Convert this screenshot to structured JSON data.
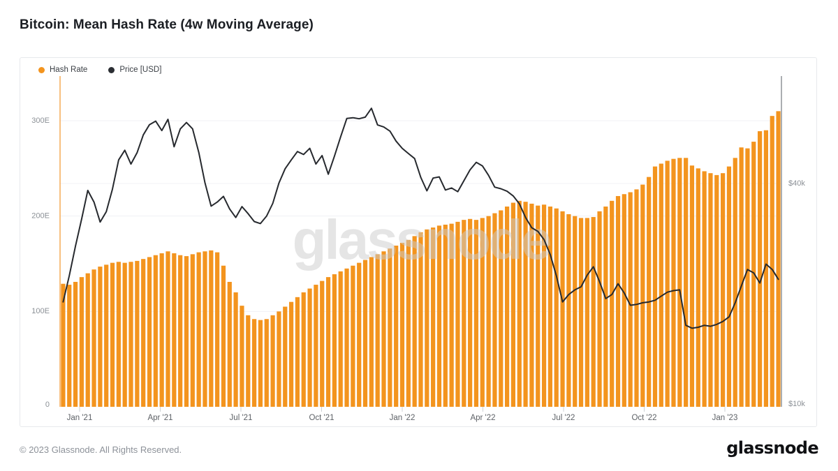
{
  "header": {
    "title": "Bitcoin: Mean Hash Rate (4w Moving Average)"
  },
  "legend": [
    {
      "label": "Hash Rate",
      "color": "#F3941E"
    },
    {
      "label": "Price [USD]",
      "color": "#2B2E33"
    }
  ],
  "watermark": "glassnode",
  "footer": {
    "copyright": "© 2023 Glassnode. All Rights Reserved.",
    "logo": "glassnode"
  },
  "chart_data": {
    "type": "bar+line",
    "title": "Bitcoin: Mean Hash Rate (4w Moving Average)",
    "x_ticks": [
      "Jan '21",
      "Apr '21",
      "Jul '21",
      "Oct '21",
      "Jan '22",
      "Apr '22",
      "Jul '22",
      "Oct '22",
      "Jan '23"
    ],
    "x_range_note": "weekly points, mid-Dec 2020 to early-Mar 2023",
    "left_axis": {
      "unit": "EH/s",
      "scale": "linear",
      "min": 0,
      "max": 300,
      "ticks": [
        {
          "value": 300,
          "label": "300E"
        },
        {
          "value": 200,
          "label": "200E"
        },
        {
          "value": 100,
          "label": "100E"
        },
        {
          "value": 0,
          "label": "0"
        }
      ]
    },
    "right_axis": {
      "unit": "USD",
      "scale": "log",
      "ticks": [
        {
          "value": 40000,
          "label": "$40k"
        },
        {
          "value": 10000,
          "label": "$10k"
        }
      ]
    },
    "grid": true,
    "legend_position": "top-left",
    "series": [
      {
        "name": "Hash Rate",
        "type": "bar",
        "unit": "EH/s",
        "color": "#F3941E",
        "values": [
          129,
          128,
          131,
          136,
          140,
          144,
          147,
          149,
          151,
          152,
          151,
          152,
          153,
          155,
          157,
          159,
          161,
          163,
          161,
          159,
          158,
          160,
          162,
          163,
          164,
          162,
          148,
          131,
          120,
          106,
          96,
          92,
          91,
          92,
          96,
          100,
          105,
          110,
          115,
          120,
          124,
          128,
          132,
          136,
          139,
          142,
          145,
          148,
          151,
          154,
          157,
          160,
          163,
          166,
          169,
          172,
          175,
          179,
          183,
          186,
          188,
          190,
          191,
          192,
          194,
          196,
          197,
          196,
          198,
          200,
          203,
          206,
          210,
          214,
          216,
          215,
          213,
          211,
          212,
          210,
          208,
          205,
          202,
          200,
          198,
          198,
          199,
          205,
          210,
          216,
          221,
          223,
          225,
          228,
          233,
          241,
          252,
          255,
          258,
          260,
          261,
          261,
          253,
          250,
          247,
          245,
          243,
          245,
          252,
          261,
          272,
          271,
          278,
          289,
          290,
          305,
          310
        ]
      },
      {
        "name": "Price [USD]",
        "type": "line",
        "unit": "USD thousands",
        "color": "#26292E",
        "values": [
          19.0,
          22.4,
          27.0,
          32.0,
          38.3,
          35.6,
          31.4,
          33.5,
          38.6,
          46.4,
          49.3,
          45.2,
          48.6,
          54.3,
          57.9,
          59.2,
          55.8,
          59.9,
          50.4,
          56.4,
          58.7,
          56.4,
          48.6,
          40.2,
          34.7,
          35.6,
          36.9,
          34.1,
          32.3,
          34.6,
          33.1,
          31.5,
          31.1,
          32.6,
          35.3,
          40.1,
          43.9,
          46.4,
          48.9,
          48.0,
          49.9,
          45.2,
          47.7,
          42.4,
          47.5,
          53.6,
          60.2,
          60.5,
          60.1,
          60.7,
          64.2,
          57.8,
          57.1,
          55.6,
          52.2,
          49.9,
          48.3,
          46.8,
          41.6,
          38.2,
          41.4,
          41.7,
          38.4,
          38.9,
          38.0,
          40.7,
          43.6,
          45.7,
          44.7,
          42.1,
          39.1,
          38.7,
          38.1,
          37.0,
          35.2,
          32.3,
          30.3,
          29.6,
          28.1,
          25.6,
          22.4,
          19.0,
          19.9,
          20.5,
          20.9,
          22.5,
          23.7,
          21.6,
          19.4,
          19.9,
          21.3,
          20.1,
          18.6,
          18.7,
          18.9,
          19.0,
          19.2,
          19.7,
          20.2,
          20.4,
          20.5,
          16.4,
          16.1,
          16.2,
          16.4,
          16.3,
          16.5,
          16.8,
          17.3,
          18.9,
          21.0,
          23.3,
          22.8,
          21.4,
          24.1,
          23.3,
          21.9
        ]
      }
    ]
  }
}
